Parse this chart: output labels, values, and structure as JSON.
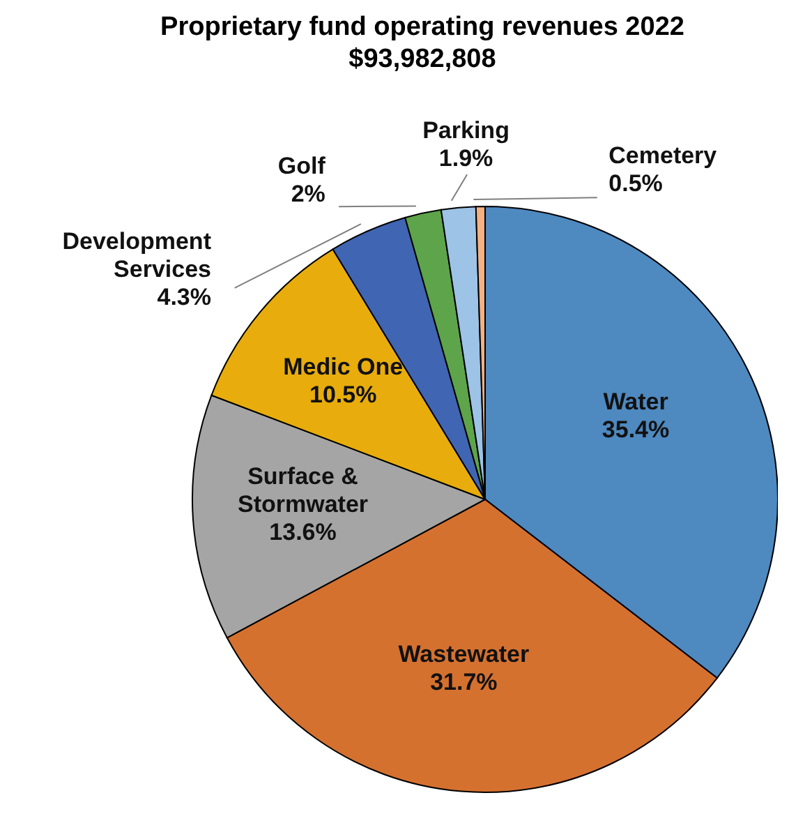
{
  "chart_data": {
    "type": "pie",
    "title": "Proprietary fund operating revenues 2022",
    "subtitle": "$93,982,808",
    "categories": [
      "Water",
      "Wastewater",
      "Surface & Stormwater",
      "Medic One",
      "Development Services",
      "Golf",
      "Parking",
      "Cemetery"
    ],
    "values": [
      35.4,
      31.7,
      13.6,
      10.5,
      4.3,
      2,
      1.9,
      0.5
    ],
    "value_labels": [
      "35.4%",
      "31.7%",
      "13.6%",
      "10.5%",
      "4.3%",
      "2%",
      "1.9%",
      "0.5%"
    ],
    "colors": [
      "#4e89c0",
      "#d5712f",
      "#a5a5a5",
      "#e8ad0c",
      "#3f65b3",
      "#5ea44a",
      "#9dc3e6",
      "#f4b183"
    ]
  }
}
